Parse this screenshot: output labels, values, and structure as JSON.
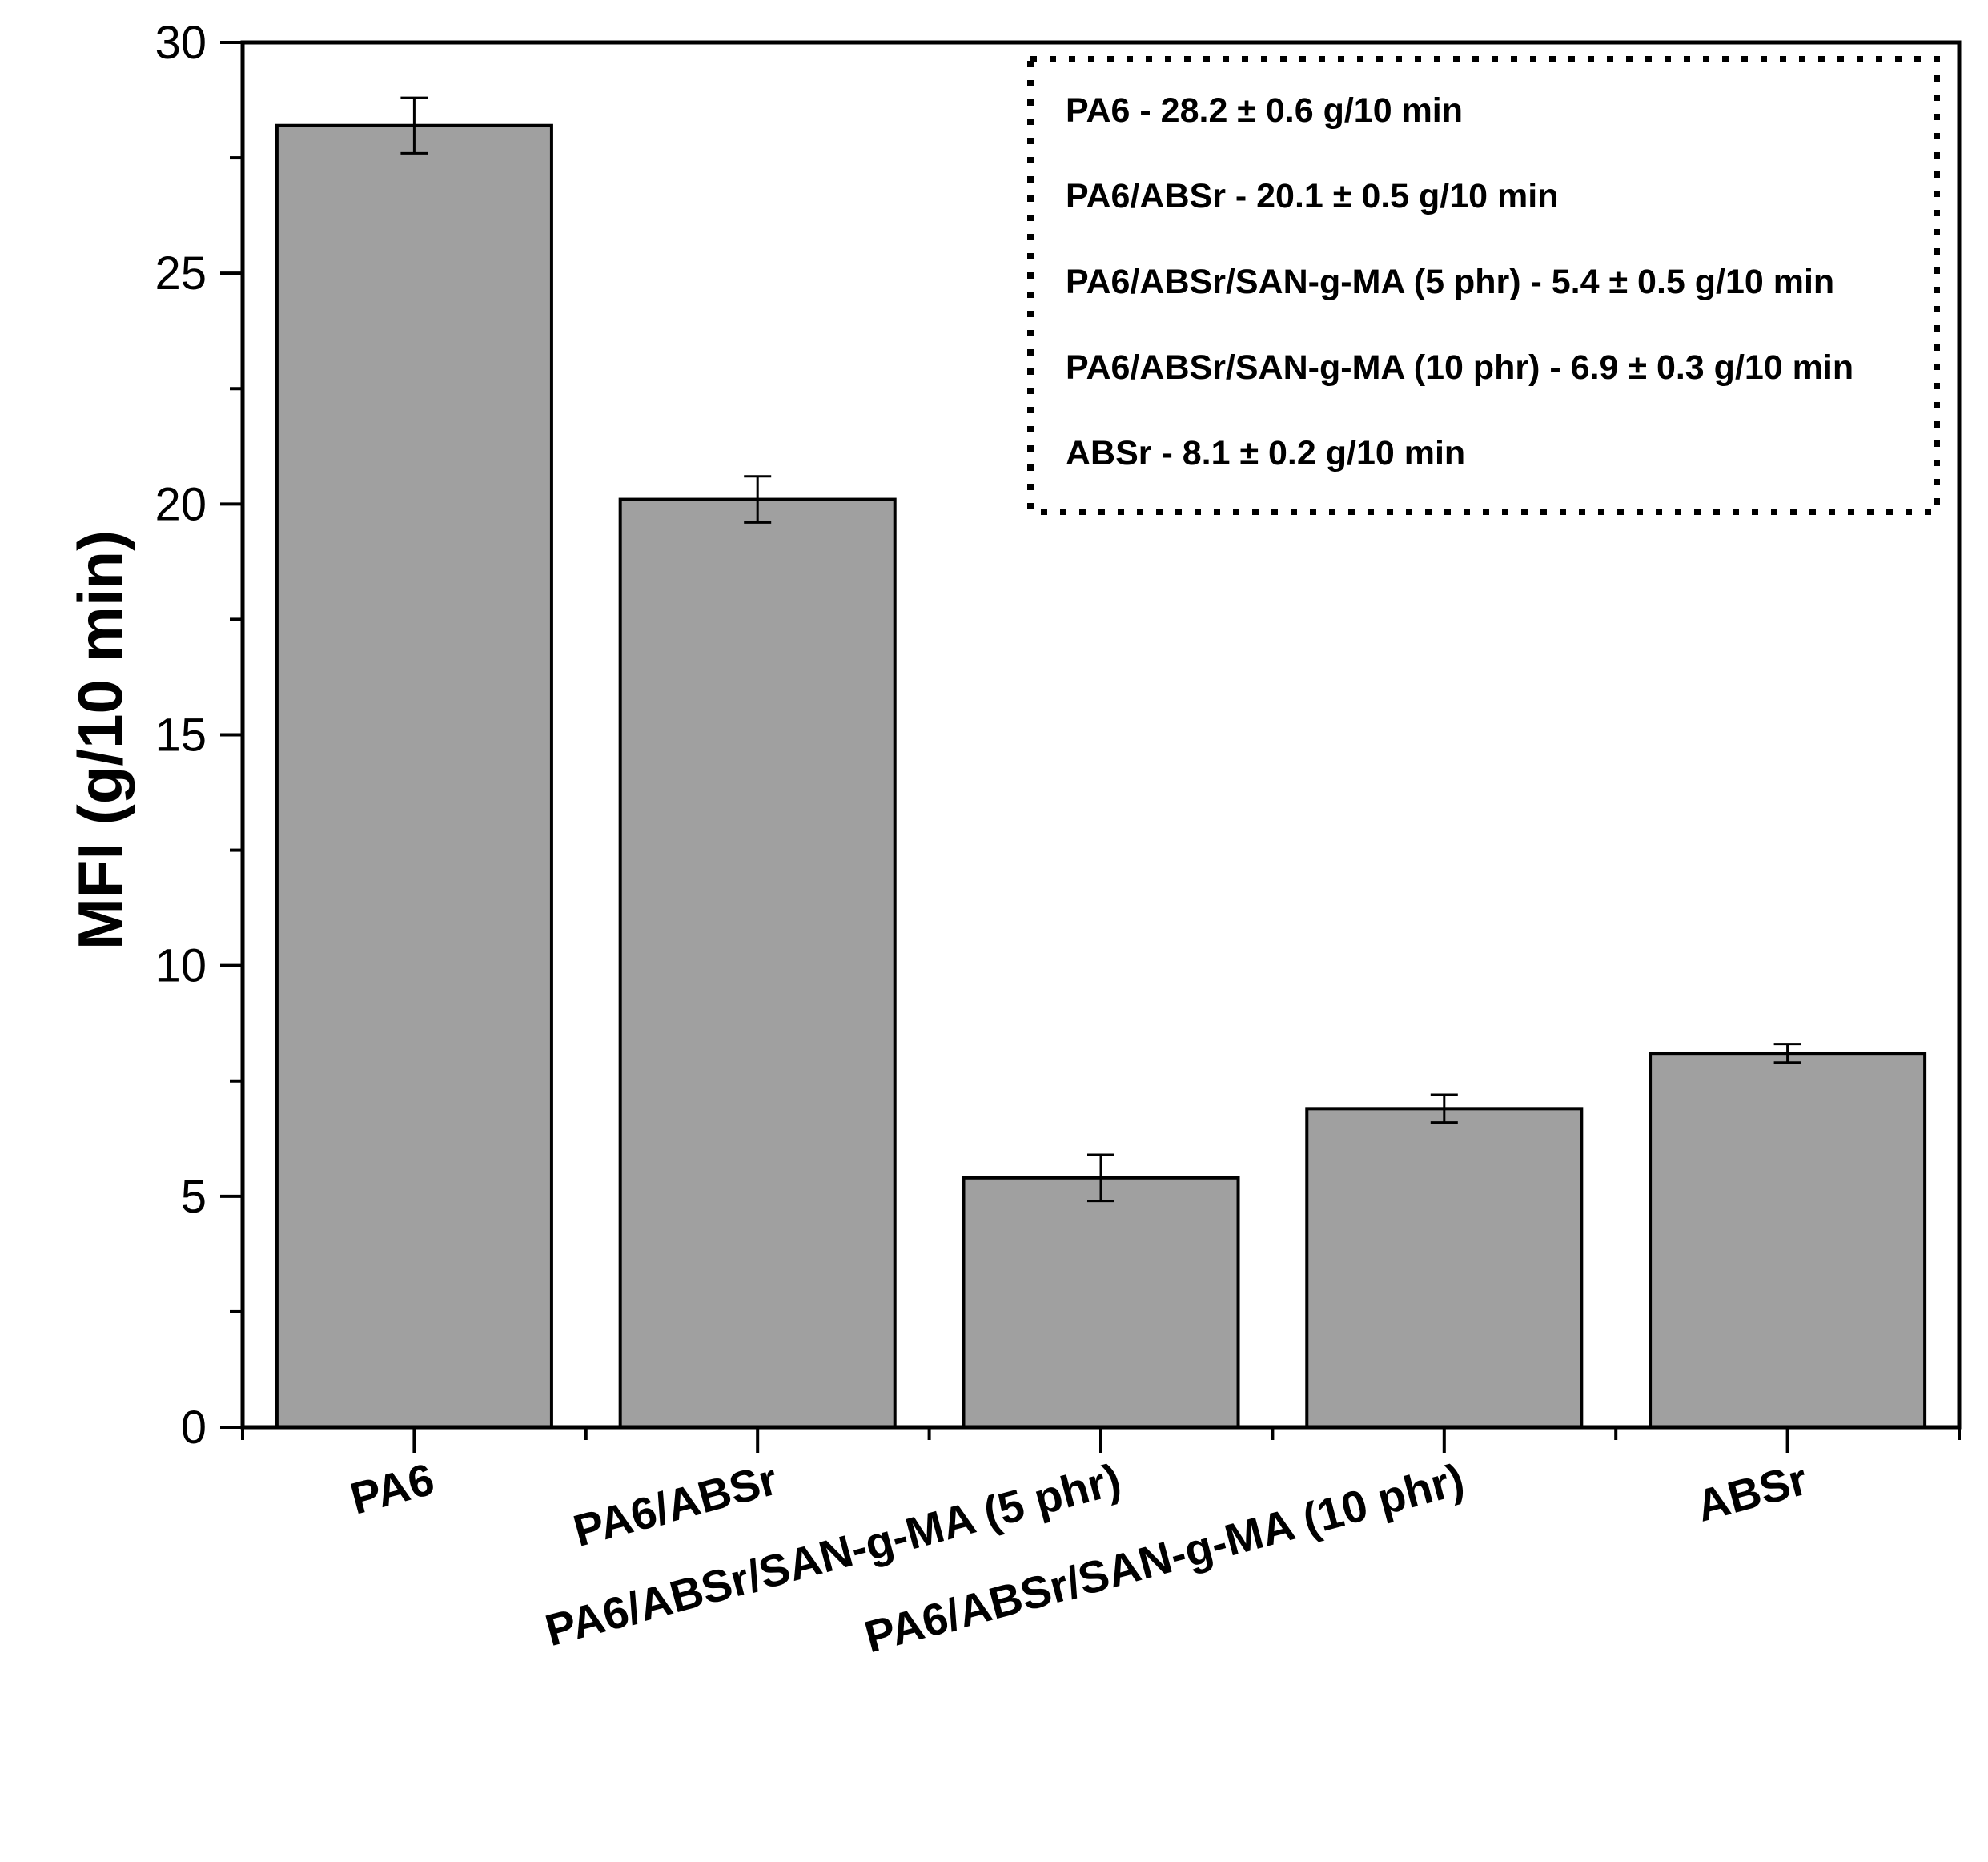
{
  "chart_data": {
    "type": "bar",
    "title": "",
    "xlabel": "",
    "ylabel": "MFI (g/10 min)",
    "ylim": [
      0,
      30
    ],
    "yticks": [
      0,
      5,
      10,
      15,
      20,
      25,
      30
    ],
    "categories": [
      "PA6",
      "PA6/ABSr",
      "PA6/ABSr/SAN-g-MA (5 phr)",
      "PA6/ABSr/SAN-g-MA (10 phr)",
      "ABSr"
    ],
    "values": [
      28.2,
      20.1,
      5.4,
      6.9,
      8.1
    ],
    "errors": [
      0.6,
      0.5,
      0.5,
      0.3,
      0.2
    ],
    "bar_color": "#a0a0a0",
    "legend_position": "top-right",
    "annotations": [
      "PA6 - 28.2 ± 0.6 g/10 min",
      "PA6/ABSr - 20.1 ± 0.5 g/10 min",
      "PA6/ABSr/SAN-g-MA (5 phr) - 5.4 ± 0.5 g/10 min",
      "PA6/ABSr/SAN-g-MA (10 phr) - 6.9 ± 0.3 g/10 min",
      "ABSr - 8.1 ± 0.2 g/10 min"
    ]
  }
}
